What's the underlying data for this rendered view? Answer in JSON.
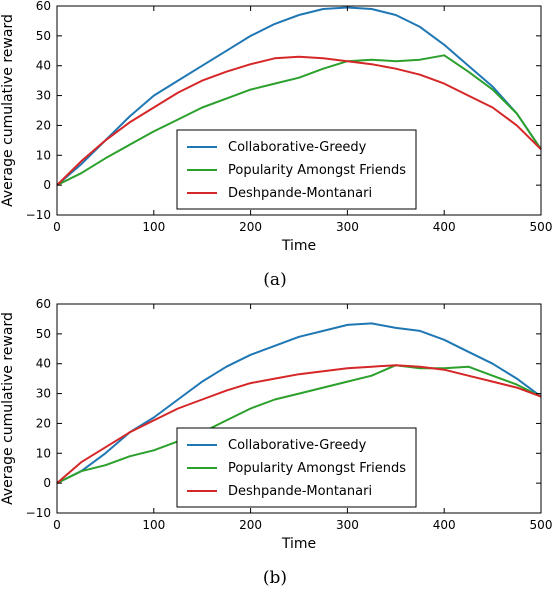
{
  "colors": {
    "Collaborative-Greedy": "#1f77b4",
    "Popularity Amongst Friends": "#2ca02c",
    "Deshpande-Montanari": "#d62728"
  },
  "chart_data": [
    {
      "type": "line",
      "caption": "(a)",
      "xlabel": "Time",
      "ylabel": "Average cumulative reward",
      "xlim": [
        0,
        500
      ],
      "ylim": [
        -10,
        60
      ],
      "xticks": [
        "0",
        "100",
        "200",
        "300",
        "400",
        "500"
      ],
      "yticks": [
        "−10",
        "0",
        "10",
        "20",
        "30",
        "40",
        "50",
        "60"
      ],
      "legend_position": "lower-center",
      "grid": false,
      "x": [
        0,
        25,
        50,
        75,
        100,
        125,
        150,
        175,
        200,
        225,
        250,
        275,
        300,
        325,
        350,
        375,
        400,
        425,
        450,
        475,
        500
      ],
      "series": [
        {
          "name": "Collaborative-Greedy",
          "values": [
            0,
            7,
            15,
            23,
            30,
            35,
            40,
            45,
            50,
            54,
            57,
            59,
            59.5,
            59,
            57,
            53,
            47,
            40,
            33,
            24,
            12
          ]
        },
        {
          "name": "Popularity Amongst Friends",
          "values": [
            0,
            4,
            9,
            13.5,
            18,
            22,
            26,
            29,
            32,
            34,
            36,
            39,
            41.5,
            42,
            41.5,
            42,
            43.5,
            38,
            32,
            24,
            12
          ]
        },
        {
          "name": "Deshpande-Montanari",
          "values": [
            0,
            8,
            15,
            21,
            26,
            31,
            35,
            38,
            40.5,
            42.5,
            43,
            42.5,
            41.5,
            40.5,
            39,
            37,
            34,
            30,
            26,
            20,
            12
          ]
        }
      ]
    },
    {
      "type": "line",
      "caption": "(b)",
      "xlabel": "Time",
      "ylabel": "Average cumulative reward",
      "xlim": [
        0,
        500
      ],
      "ylim": [
        -10,
        60
      ],
      "xticks": [
        "0",
        "100",
        "200",
        "300",
        "400",
        "500"
      ],
      "yticks": [
        "−10",
        "0",
        "10",
        "20",
        "30",
        "40",
        "50",
        "60"
      ],
      "legend_position": "lower-center",
      "grid": false,
      "x": [
        0,
        25,
        50,
        75,
        100,
        125,
        150,
        175,
        200,
        225,
        250,
        275,
        300,
        325,
        350,
        375,
        400,
        425,
        450,
        475,
        500
      ],
      "series": [
        {
          "name": "Collaborative-Greedy",
          "values": [
            0,
            4,
            10,
            17,
            22,
            28,
            34,
            39,
            43,
            46,
            49,
            51,
            53,
            53.5,
            52,
            51,
            48,
            44,
            40,
            35,
            29
          ]
        },
        {
          "name": "Popularity Amongst Friends",
          "values": [
            0,
            4,
            6,
            9,
            11,
            14,
            17,
            21,
            25,
            28,
            30,
            32,
            34,
            36,
            39.5,
            38.5,
            38.5,
            39,
            36,
            33,
            29
          ]
        },
        {
          "name": "Deshpande-Montanari",
          "values": [
            0,
            7,
            12,
            17,
            21,
            25,
            28,
            31,
            33.5,
            35,
            36.5,
            37.5,
            38.5,
            39,
            39.5,
            39,
            38,
            36,
            34,
            32,
            29
          ]
        }
      ]
    }
  ]
}
